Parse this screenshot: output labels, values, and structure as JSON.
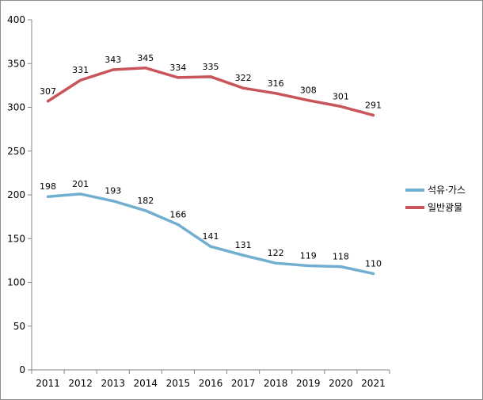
{
  "chart_data": {
    "type": "line",
    "title": "",
    "xlabel": "",
    "ylabel": "",
    "x": [
      "2011",
      "2012",
      "2013",
      "2014",
      "2015",
      "2016",
      "2017",
      "2018",
      "2019",
      "2020",
      "2021"
    ],
    "ylim": [
      0,
      400
    ],
    "yticks": [
      "0",
      "50",
      "100",
      "150",
      "200",
      "250",
      "300",
      "350",
      "400"
    ],
    "grid": false,
    "legend_position": "right",
    "series": [
      {
        "name": "석유·가스",
        "color": "#70afd0",
        "values": [
          198,
          201,
          193,
          182,
          166,
          141,
          131,
          122,
          119,
          118,
          110
        ]
      },
      {
        "name": "일반광물",
        "color": "#c8555a",
        "values": [
          307,
          331,
          343,
          345,
          334,
          335,
          322,
          316,
          308,
          301,
          291
        ]
      }
    ]
  }
}
